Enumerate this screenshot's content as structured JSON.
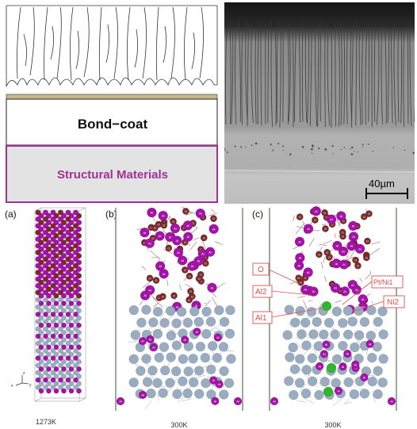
{
  "schematic": {
    "bondcoat_label": "Bond−coat",
    "substrate_label": "Structural Materials",
    "colors": {
      "substrate_border": "#a0309a",
      "substrate_text": "#a0309a",
      "substrate_fill": "#e3e3e3",
      "tgo": "#c9b98a"
    }
  },
  "sem": {
    "scale_label": "40µm"
  },
  "panels": [
    {
      "letter": "(a)",
      "temperature": "1273K"
    },
    {
      "letter": "(b)",
      "temperature": "300K"
    },
    {
      "letter": "(c)",
      "temperature": "300K"
    }
  ],
  "axis_triad": {
    "z": "z",
    "x": "x",
    "y": "y"
  },
  "atom_labels": {
    "al": "Al",
    "o": "O"
  },
  "callouts": {
    "o": "O",
    "al2": "Al2",
    "al1": "Al1",
    "pt_ni1": "Pt/Ni1",
    "ni2": "Ni2"
  },
  "atom_colors": {
    "al": "#a313a6",
    "o": "#7a2a2a",
    "ni": "#9aacbf",
    "pt": "#2fb52f",
    "callout": "#d9534f"
  }
}
